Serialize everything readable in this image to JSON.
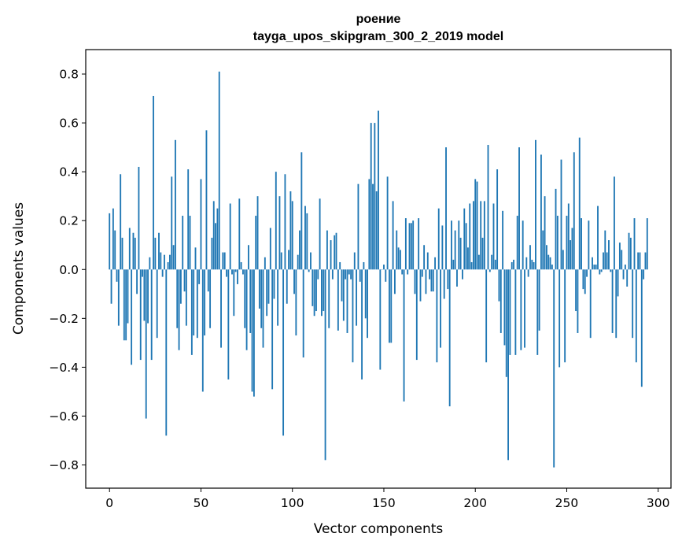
{
  "chart_data": {
    "type": "bar",
    "title": "роение",
    "subtitle": "tayga_upos_skipgram_300_2_2019 model",
    "xlabel": "Vector components",
    "ylabel": "Components values",
    "xlim": [
      -13,
      307
    ],
    "ylim": [
      -0.895,
      0.9
    ],
    "xticks": [
      0,
      50,
      100,
      150,
      200,
      250,
      300
    ],
    "yticks": [
      -0.8,
      -0.6,
      -0.4,
      -0.2,
      0.0,
      0.2,
      0.4,
      0.6,
      0.8
    ],
    "ytick_labels": [
      "−0.8",
      "−0.6",
      "−0.4",
      "−0.2",
      "0.0",
      "0.2",
      "0.4",
      "0.6",
      "0.8"
    ],
    "bar_color": "#1f77b4",
    "values": [
      0.23,
      -0.14,
      0.25,
      0.16,
      -0.05,
      -0.23,
      0.39,
      0.13,
      -0.29,
      -0.29,
      -0.22,
      0.17,
      -0.39,
      0.15,
      0.13,
      -0.1,
      0.42,
      -0.37,
      -0.03,
      -0.21,
      -0.61,
      -0.22,
      0.05,
      -0.37,
      0.71,
      0.13,
      -0.28,
      0.15,
      0.07,
      -0.03,
      0.06,
      -0.68,
      0.03,
      0.06,
      0.38,
      0.1,
      0.53,
      -0.24,
      -0.33,
      -0.14,
      0.22,
      -0.09,
      -0.23,
      0.41,
      0.22,
      -0.35,
      -0.27,
      0.09,
      -0.28,
      -0.06,
      0.37,
      -0.5,
      -0.27,
      0.57,
      -0.09,
      -0.24,
      0.13,
      0.28,
      0.19,
      0.25,
      0.81,
      -0.32,
      0.07,
      0.07,
      -0.03,
      -0.45,
      0.27,
      -0.02,
      -0.19,
      -0.01,
      -0.06,
      0.29,
      0.03,
      -0.02,
      -0.24,
      -0.33,
      0.1,
      -0.26,
      -0.5,
      -0.52,
      0.22,
      0.3,
      -0.16,
      -0.24,
      -0.32,
      0.05,
      -0.19,
      -0.14,
      0.17,
      -0.49,
      -0.12,
      0.4,
      -0.23,
      0.3,
      0.07,
      -0.68,
      0.39,
      -0.14,
      0.08,
      0.32,
      0.28,
      -0.1,
      -0.27,
      0.06,
      0.16,
      0.48,
      -0.36,
      0.26,
      0.23,
      -0.01,
      0.07,
      -0.15,
      -0.19,
      -0.17,
      -0.04,
      0.29,
      -0.19,
      -0.17,
      -0.78,
      0.16,
      -0.24,
      0.12,
      -0.04,
      0.14,
      0.15,
      -0.25,
      0.03,
      -0.13,
      -0.21,
      -0.04,
      -0.26,
      -0.02,
      -0.04,
      -0.38,
      0.07,
      -0.23,
      0.35,
      -0.05,
      -0.45,
      0.03,
      -0.2,
      -0.28,
      0.37,
      0.6,
      0.35,
      0.6,
      0.32,
      0.65,
      -0.41,
      0.0,
      0.02,
      -0.05,
      0.38,
      -0.3,
      -0.3,
      0.28,
      -0.1,
      0.16,
      0.09,
      0.08,
      -0.02,
      -0.54,
      0.21,
      -0.02,
      0.19,
      0.19,
      0.2,
      -0.1,
      -0.37,
      0.21,
      -0.13,
      -0.03,
      0.1,
      -0.1,
      0.07,
      -0.04,
      -0.09,
      -0.09,
      0.05,
      -0.38,
      0.25,
      -0.32,
      0.18,
      -0.12,
      0.5,
      -0.08,
      -0.56,
      0.2,
      0.04,
      0.16,
      -0.07,
      0.2,
      0.13,
      -0.04,
      0.25,
      0.19,
      0.09,
      0.27,
      0.03,
      0.28,
      0.37,
      0.36,
      0.06,
      0.28,
      0.13,
      0.28,
      -0.38,
      0.51,
      -0.01,
      0.06,
      0.27,
      0.04,
      0.41,
      -0.13,
      -0.26,
      0.24,
      -0.31,
      -0.44,
      -0.78,
      -0.35,
      0.03,
      0.04,
      -0.35,
      0.22,
      0.5,
      -0.33,
      0.2,
      -0.32,
      0.05,
      -0.03,
      0.1,
      0.04,
      0.03,
      0.53,
      -0.35,
      -0.25,
      0.47,
      0.16,
      0.3,
      0.1,
      0.06,
      0.05,
      0.02,
      -0.81,
      0.33,
      0.22,
      -0.4,
      0.45,
      0.08,
      -0.38,
      0.22,
      0.27,
      0.12,
      0.17,
      0.48,
      -0.17,
      -0.26,
      0.54,
      0.21,
      -0.08,
      -0.1,
      -0.03,
      0.2,
      -0.28,
      0.05,
      0.02,
      0.02,
      0.26,
      -0.02,
      -0.01,
      0.07,
      0.16,
      0.07,
      0.12,
      -0.01,
      -0.26,
      0.38,
      -0.28,
      -0.11,
      0.11,
      0.08,
      -0.04,
      0.02,
      -0.07,
      0.15,
      0.13,
      -0.28,
      0.21,
      -0.38,
      0.07,
      0.07,
      -0.48,
      -0.04,
      0.07,
      0.21
    ]
  }
}
